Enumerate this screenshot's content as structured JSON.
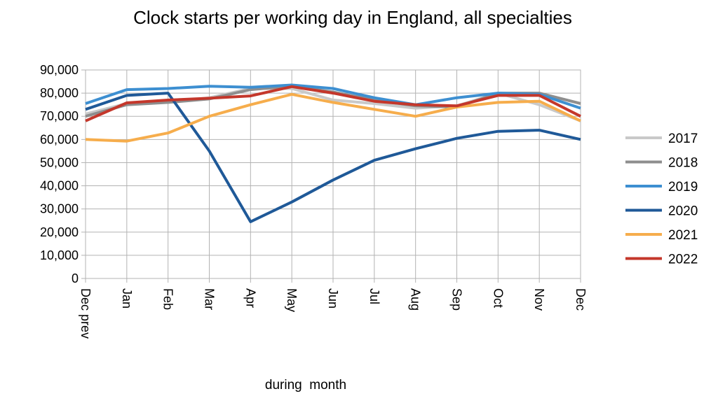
{
  "chart_data": {
    "type": "line",
    "title": "Clock starts per working day in England, all specialties",
    "xlabel": "during  month",
    "ylabel": "",
    "categories": [
      "Dec prev",
      "Jan",
      "Feb",
      "Mar",
      "Apr",
      "May",
      "Jun",
      "Jul",
      "Aug",
      "Sep",
      "Oct",
      "Nov",
      "Dec"
    ],
    "yticks": [
      "0",
      "10,000",
      "20,000",
      "30,000",
      "40,000",
      "50,000",
      "60,000",
      "70,000",
      "80,000",
      "90,000"
    ],
    "ylim": [
      0,
      90000
    ],
    "grid": true,
    "legend_position": "right",
    "series": [
      {
        "name": "2017",
        "color": "#c9c9c9",
        "values": [
          71000,
          75500,
          76000,
          78000,
          82000,
          82000,
          77000,
          75500,
          73500,
          74500,
          80000,
          75000,
          68000
        ]
      },
      {
        "name": "2018",
        "color": "#8e8e8e",
        "values": [
          70000,
          75000,
          76000,
          77500,
          81500,
          83000,
          80500,
          77000,
          74500,
          74000,
          80000,
          80000,
          75500
        ]
      },
      {
        "name": "2019",
        "color": "#3d8fd1",
        "values": [
          75500,
          81500,
          82000,
          83000,
          82500,
          83500,
          82000,
          78000,
          75000,
          78000,
          80000,
          79500,
          73500
        ]
      },
      {
        "name": "2020",
        "color": "#1f5998",
        "values": [
          73000,
          79000,
          80000,
          55000,
          24500,
          33000,
          42500,
          51000,
          56000,
          60500,
          63500,
          64000,
          60000
        ]
      },
      {
        "name": "2021",
        "color": "#f6ad4c",
        "values": [
          60000,
          59300,
          62800,
          70000,
          75000,
          79500,
          76000,
          73000,
          70000,
          74000,
          76000,
          76500,
          68000
        ]
      },
      {
        "name": "2022",
        "color": "#c4372b",
        "values": [
          68000,
          75800,
          77000,
          77800,
          78800,
          82800,
          80000,
          76500,
          75000,
          74500,
          79000,
          79000,
          70000
        ]
      }
    ]
  }
}
